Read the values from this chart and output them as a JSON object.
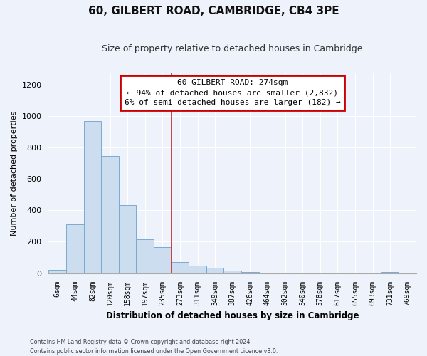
{
  "title": "60, GILBERT ROAD, CAMBRIDGE, CB4 3PE",
  "subtitle": "Size of property relative to detached houses in Cambridge",
  "xlabel": "Distribution of detached houses by size in Cambridge",
  "ylabel": "Number of detached properties",
  "bar_color": "#cdddf0",
  "bar_edge_color": "#7aaad0",
  "bin_labels": [
    "6sqm",
    "44sqm",
    "82sqm",
    "120sqm",
    "158sqm",
    "197sqm",
    "235sqm",
    "273sqm",
    "311sqm",
    "349sqm",
    "387sqm",
    "426sqm",
    "464sqm",
    "502sqm",
    "540sqm",
    "578sqm",
    "617sqm",
    "655sqm",
    "693sqm",
    "731sqm",
    "769sqm"
  ],
  "bar_heights": [
    20,
    310,
    965,
    745,
    435,
    215,
    165,
    70,
    47,
    33,
    18,
    8,
    2,
    0,
    0,
    0,
    0,
    0,
    0,
    8,
    0
  ],
  "ylim": [
    0,
    1270
  ],
  "yticks": [
    0,
    200,
    400,
    600,
    800,
    1000,
    1200
  ],
  "property_line_x": 7,
  "annotation_title": "60 GILBERT ROAD: 274sqm",
  "annotation_line1": "← 94% of detached houses are smaller (2,832)",
  "annotation_line2": "6% of semi-detached houses are larger (182) →",
  "annotation_box_color": "#ffffff",
  "annotation_box_edge_color": "#cc0000",
  "vline_color": "#cc2222",
  "footnote1": "Contains HM Land Registry data © Crown copyright and database right 2024.",
  "footnote2": "Contains public sector information licensed under the Open Government Licence v3.0.",
  "background_color": "#eef2fa",
  "grid_color": "#ffffff",
  "title_fontsize": 11,
  "subtitle_fontsize": 9
}
